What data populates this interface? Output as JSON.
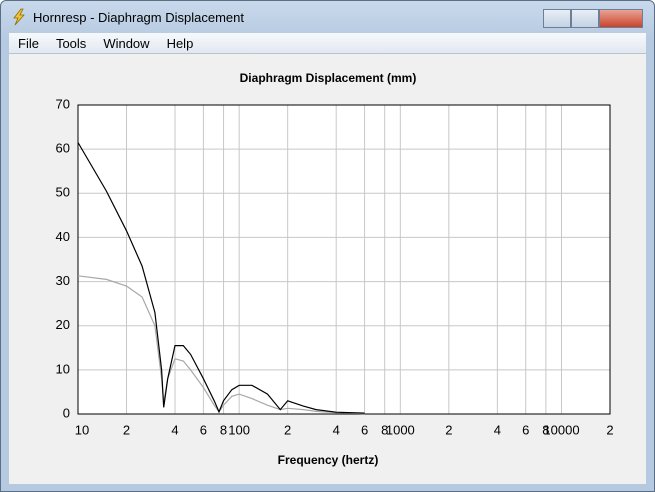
{
  "window": {
    "title": "Hornresp - Diaphragm Displacement"
  },
  "menu": [
    "File",
    "Tools",
    "Window",
    "Help"
  ],
  "chart_data": {
    "type": "line",
    "title": "Diaphragm Displacement (mm)",
    "x_label": "Frequency (hertz)",
    "x": [
      10,
      15,
      20,
      25,
      30,
      33,
      34,
      36,
      40,
      45,
      50,
      60,
      70,
      75,
      80,
      90,
      100,
      120,
      150,
      180,
      200,
      250,
      300,
      400,
      600
    ],
    "series": [
      {
        "name": "Black",
        "color": "#000000",
        "values": [
          61.5,
          50.5,
          41.5,
          33.5,
          23,
          10,
          1.5,
          8,
          15.5,
          15.5,
          13.5,
          8,
          3,
          0.5,
          3,
          5.5,
          6.5,
          6.5,
          4.5,
          1,
          3,
          1.8,
          1,
          0.4,
          0.2
        ]
      },
      {
        "name": "Gray",
        "color": "#a8a8a8",
        "values": [
          31.3,
          30.5,
          29,
          26.5,
          20,
          8,
          2.5,
          8,
          12.5,
          12,
          10,
          6,
          2,
          0.5,
          2,
          4,
          4.5,
          3.5,
          2,
          1,
          1.3,
          1,
          0.6,
          0.3,
          0.1
        ]
      }
    ],
    "log_x": true,
    "grid": true,
    "xlim": [
      10,
      20000
    ],
    "xticks": [
      10,
      {
        "value": 20,
        "label": "2"
      },
      {
        "value": 40,
        "label": "4"
      },
      {
        "value": 60,
        "label": "6"
      },
      {
        "value": 80,
        "label": "8"
      },
      100,
      {
        "value": 200,
        "label": "2"
      },
      {
        "value": 400,
        "label": "4"
      },
      {
        "value": 600,
        "label": "6"
      },
      {
        "value": 800,
        "label": "8"
      },
      1000,
      {
        "value": 2000,
        "label": "2"
      },
      {
        "value": 4000,
        "label": "4"
      },
      {
        "value": 6000,
        "label": "6"
      },
      {
        "value": 8000,
        "label": "8"
      },
      10000,
      {
        "value": 20000,
        "label": "2"
      }
    ],
    "ylim": [
      0,
      70
    ],
    "yticks": [
      0,
      10,
      20,
      30,
      40,
      50,
      60,
      70
    ]
  }
}
